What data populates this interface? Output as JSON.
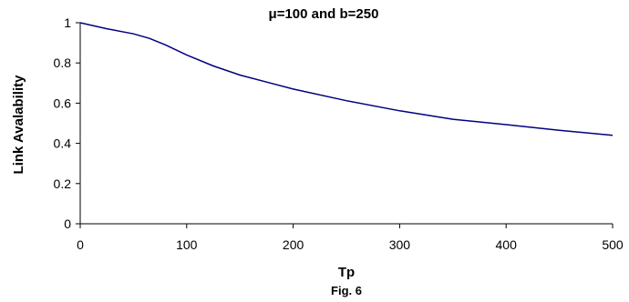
{
  "chart_data": {
    "type": "line",
    "title": "μ=100 and  b=250",
    "xlabel": "Tp",
    "ylabel": "Link Avalability",
    "caption": "Fig. 6",
    "xlim": [
      0,
      500
    ],
    "ylim": [
      0,
      1
    ],
    "x_ticks": [
      0,
      100,
      200,
      300,
      400,
      500
    ],
    "y_ticks": [
      0,
      0.2,
      0.4,
      0.6,
      0.8,
      1
    ],
    "grid": false,
    "legend": "none",
    "series": [
      {
        "color": "#000080",
        "x": [
          0,
          25,
          50,
          65,
          80,
          100,
          125,
          150,
          175,
          200,
          250,
          300,
          350,
          400,
          450,
          500
        ],
        "values": [
          1.0,
          0.97,
          0.945,
          0.922,
          0.89,
          0.84,
          0.785,
          0.74,
          0.705,
          0.67,
          0.612,
          0.562,
          0.52,
          0.493,
          0.465,
          0.44
        ]
      }
    ]
  }
}
